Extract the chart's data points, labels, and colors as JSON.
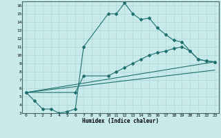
{
  "xlabel": "Humidex (Indice chaleur)",
  "bg_color": "#c8eaea",
  "grid_color": "#b0d4d4",
  "line_color": "#1e7070",
  "xlim": [
    -0.5,
    23.5
  ],
  "ylim": [
    3,
    16.5
  ],
  "xticks": [
    0,
    1,
    2,
    3,
    4,
    5,
    6,
    7,
    8,
    9,
    10,
    11,
    12,
    13,
    14,
    15,
    16,
    17,
    18,
    19,
    20,
    21,
    22,
    23
  ],
  "yticks": [
    3,
    4,
    5,
    6,
    7,
    8,
    9,
    10,
    11,
    12,
    13,
    14,
    15,
    16
  ],
  "series1_x": [
    0,
    1,
    2,
    3,
    4,
    5,
    6,
    7,
    10,
    11,
    12,
    13,
    14,
    15,
    16,
    17,
    18,
    19,
    20,
    21,
    22,
    23
  ],
  "series1_y": [
    5.5,
    4.5,
    3.5,
    3.5,
    3.0,
    3.2,
    3.5,
    11.0,
    15.0,
    15.0,
    16.3,
    15.0,
    14.3,
    14.5,
    13.3,
    12.5,
    11.8,
    11.6,
    10.5,
    9.5,
    9.3,
    9.2
  ],
  "series2_x": [
    0,
    6,
    7,
    10,
    11,
    12,
    13,
    14,
    15,
    16,
    17,
    18,
    19,
    20,
    21,
    22,
    23
  ],
  "series2_y": [
    5.5,
    5.5,
    7.5,
    7.5,
    8.0,
    8.5,
    9.0,
    9.5,
    10.0,
    10.3,
    10.5,
    10.8,
    11.0,
    10.5,
    9.5,
    9.3,
    9.2
  ],
  "line1_x": [
    0,
    23
  ],
  "line1_y": [
    5.5,
    9.2
  ],
  "line2_x": [
    0,
    23
  ],
  "line2_y": [
    5.5,
    8.2
  ]
}
